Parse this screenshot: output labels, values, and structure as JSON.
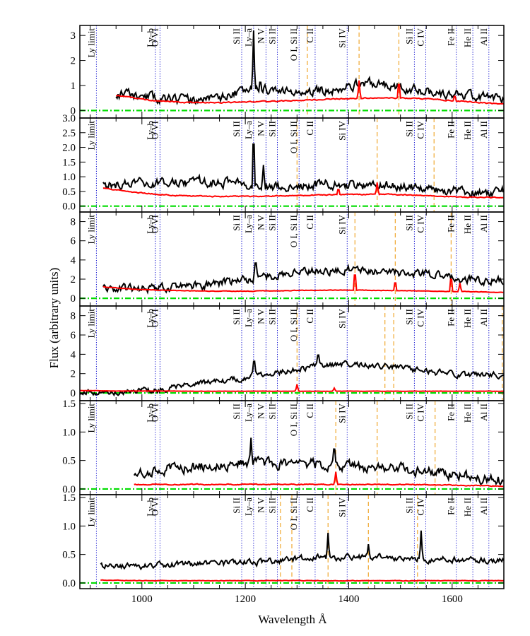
{
  "chart_data": {
    "type": "line",
    "xlabel": "Wavelength Å",
    "ylabel": "Flux (arbitrary units)",
    "xlim": [
      880,
      1700
    ],
    "x_ticks": [
      1000,
      1200,
      1400,
      1600
    ],
    "colors": {
      "spectrum": "#000000",
      "error": "#ff0000",
      "zero_line": "#00dd00",
      "line_marker": "#0000cc",
      "feature_marker": "#f0a830"
    },
    "lines": [
      {
        "label": "Ly limit",
        "x": 912
      },
      {
        "label": "Ly–b",
        "x": 1026
      },
      {
        "label": "O VI",
        "x": 1035
      },
      {
        "label": "Si II",
        "x": 1193
      },
      {
        "label": "Ly–a",
        "x": 1216
      },
      {
        "label": "N V",
        "x": 1240
      },
      {
        "label": "Si II",
        "x": 1262
      },
      {
        "label": "O I, Si II",
        "x": 1304
      },
      {
        "label": "C II",
        "x": 1335
      },
      {
        "label": "Si IV",
        "x": 1397
      },
      {
        "label": "Si II",
        "x": 1527
      },
      {
        "label": "C IV",
        "x": 1549
      },
      {
        "label": "Fe II",
        "x": 1608
      },
      {
        "label": "He II",
        "x": 1640
      },
      {
        "label": "Al II",
        "x": 1671
      }
    ],
    "panels": [
      {
        "ylim": [
          -0.3,
          3.4
        ],
        "y_ticks": [
          0,
          1,
          2,
          3
        ],
        "y_tick_labels": [
          "0",
          "1",
          "2",
          "3"
        ],
        "orange_lines": [
          1320,
          1420,
          1497
        ],
        "spectrum": {
          "x_start": 950,
          "x_end": 1700,
          "base": [
            0.65,
            0.5,
            0.4,
            0.55,
            0.9,
            0.7,
            0.8,
            1.1,
            1.0,
            0.7,
            0.6,
            0.5
          ],
          "noise": 0.35,
          "seed": 11
        },
        "spikes": [
          {
            "x": 1216,
            "y": 3.2,
            "w": 3
          },
          {
            "x": 1229,
            "y": 1.25,
            "w": 3
          }
        ],
        "error": {
          "x_start": 950,
          "x_end": 1700,
          "base": [
            0.6,
            0.4,
            0.32,
            0.32,
            0.35,
            0.4,
            0.45,
            0.5,
            0.5,
            0.45,
            0.35,
            0.25
          ],
          "noise": 0.04,
          "seed": 12
        },
        "error_spikes": [
          {
            "x": 1420,
            "y": 1.2,
            "w": 3
          },
          {
            "x": 1497,
            "y": 1.3,
            "w": 3
          },
          {
            "x": 1605,
            "y": 0.65,
            "w": 3
          }
        ]
      },
      {
        "ylim": [
          -0.2,
          3.0
        ],
        "y_ticks": [
          0,
          0.5,
          1,
          1.5,
          2,
          2.5,
          3
        ],
        "y_tick_labels": [
          "0.0",
          "0.5",
          "1.0",
          "1.5",
          "2.0",
          "2.5",
          "3.0"
        ],
        "orange_lines": [
          1300,
          1455,
          1565
        ],
        "spectrum": {
          "x_start": 925,
          "x_end": 1700,
          "base": [
            0.7,
            0.75,
            0.8,
            0.85,
            0.75,
            0.6,
            0.75,
            0.7,
            0.7,
            0.6,
            0.5,
            0.5
          ],
          "noise": 0.3,
          "seed": 21
        },
        "spikes": [
          {
            "x": 1216,
            "y": 2.8,
            "w": 3
          },
          {
            "x": 1235,
            "y": 1.4,
            "w": 3
          }
        ],
        "error": {
          "x_start": 925,
          "x_end": 1700,
          "base": [
            0.6,
            0.45,
            0.36,
            0.33,
            0.33,
            0.35,
            0.38,
            0.4,
            0.4,
            0.35,
            0.3,
            0.3
          ],
          "noise": 0.03,
          "seed": 22
        },
        "error_spikes": [
          {
            "x": 1380,
            "y": 0.65,
            "w": 3
          },
          {
            "x": 1455,
            "y": 0.8,
            "w": 3
          }
        ]
      },
      {
        "ylim": [
          -0.8,
          9.0
        ],
        "y_ticks": [
          0,
          2,
          4,
          6,
          8
        ],
        "y_tick_labels": [
          "0",
          "2",
          "4",
          "6",
          "8"
        ],
        "orange_lines": [
          1412,
          1490,
          1598
        ],
        "spectrum": {
          "x_start": 925,
          "x_end": 1700,
          "base": [
            1.1,
            1.0,
            1.2,
            1.5,
            2.0,
            2.6,
            2.8,
            3.0,
            2.7,
            2.4,
            2.0,
            1.8
          ],
          "noise": 0.8,
          "seed": 31
        },
        "spikes": [
          {
            "x": 1220,
            "y": 4.2,
            "w": 4
          }
        ],
        "error": {
          "x_start": 925,
          "x_end": 1700,
          "base": [
            1.2,
            0.9,
            0.8,
            0.75,
            0.75,
            0.8,
            0.85,
            0.85,
            0.8,
            0.75,
            0.7,
            0.6
          ],
          "noise": 0.05,
          "seed": 32
        },
        "error_spikes": [
          {
            "x": 1412,
            "y": 3.2,
            "w": 3
          },
          {
            "x": 1490,
            "y": 2.0,
            "w": 3
          },
          {
            "x": 1598,
            "y": 2.6,
            "w": 3
          },
          {
            "x": 1615,
            "y": 1.6,
            "w": 3
          }
        ]
      },
      {
        "ylim": [
          -0.8,
          9.0
        ],
        "y_ticks": [
          0,
          2,
          4,
          6,
          8
        ],
        "y_tick_labels": [
          "0",
          "2",
          "4",
          "6",
          "8"
        ],
        "orange_lines": [
          1300,
          1470,
          1487,
          1697
        ],
        "spectrum": {
          "x_start": 880,
          "x_end": 1700,
          "base": [
            0.1,
            0.1,
            0.3,
            0.9,
            1.4,
            2.0,
            2.7,
            3.0,
            2.8,
            2.2,
            1.8,
            1.9
          ],
          "noise": 0.55,
          "seed": 41
        },
        "spikes": [
          {
            "x": 1217,
            "y": 3.8,
            "w": 4
          },
          {
            "x": 1341,
            "y": 4.3,
            "w": 4
          }
        ],
        "error": {
          "x_start": 880,
          "x_end": 1700,
          "base": [
            0.25,
            0.2,
            0.2,
            0.18,
            0.18,
            0.18,
            0.18,
            0.18,
            0.18,
            0.18,
            0.18,
            0.18
          ],
          "noise": 0.02,
          "seed": 42
        },
        "error_spikes": [
          {
            "x": 1300,
            "y": 0.9,
            "w": 3
          },
          {
            "x": 1372,
            "y": 0.5,
            "w": 3
          }
        ]
      },
      {
        "ylim": [
          -0.1,
          1.55
        ],
        "y_ticks": [
          0,
          0.5,
          1,
          1.5
        ],
        "y_tick_labels": [
          "0.0",
          "0.5",
          "1.0",
          "1.5"
        ],
        "orange_lines": [
          1375,
          1455,
          1567
        ],
        "spectrum": {
          "x_start": 985,
          "x_end": 1700,
          "base": [
            0.3,
            0.35,
            0.4,
            0.45,
            0.45,
            0.45,
            0.4,
            0.38,
            0.35,
            0.3,
            0.2,
            0.15
          ],
          "noise": 0.17,
          "seed": 51
        },
        "spikes": [
          {
            "x": 1211,
            "y": 0.9,
            "w": 3
          },
          {
            "x": 1372,
            "y": 0.85,
            "w": 3
          }
        ],
        "error": {
          "x_start": 985,
          "x_end": 1700,
          "base": [
            0.08,
            0.08,
            0.08,
            0.08,
            0.08,
            0.08,
            0.08,
            0.08,
            0.08,
            0.07,
            0.06,
            0.05
          ],
          "noise": 0.015,
          "seed": 52
        },
        "error_spikes": [
          {
            "x": 1375,
            "y": 0.3,
            "w": 3
          }
        ]
      },
      {
        "ylim": [
          -0.1,
          1.55
        ],
        "y_ticks": [
          0,
          0.5,
          1,
          1.5
        ],
        "y_tick_labels": [
          "0.0",
          "0.5",
          "1.0",
          "1.5"
        ],
        "orange_lines": [
          1268,
          1290,
          1360,
          1438,
          1533
        ],
        "spectrum": {
          "x_start": 920,
          "x_end": 1700,
          "base": [
            0.3,
            0.3,
            0.32,
            0.33,
            0.35,
            0.4,
            0.45,
            0.45,
            0.45,
            0.42,
            0.4,
            0.4
          ],
          "noise": 0.1,
          "seed": 61
        },
        "spikes": [
          {
            "x": 1360,
            "y": 0.88,
            "w": 3
          },
          {
            "x": 1438,
            "y": 0.68,
            "w": 3
          },
          {
            "x": 1540,
            "y": 0.92,
            "w": 3
          }
        ],
        "error": {
          "x_start": 920,
          "x_end": 1700,
          "base": [
            0.05,
            0.04,
            0.04,
            0.04,
            0.04,
            0.04,
            0.04,
            0.04,
            0.04,
            0.04,
            0.04,
            0.04
          ],
          "noise": 0.008,
          "seed": 62
        },
        "error_spikes": []
      }
    ]
  }
}
